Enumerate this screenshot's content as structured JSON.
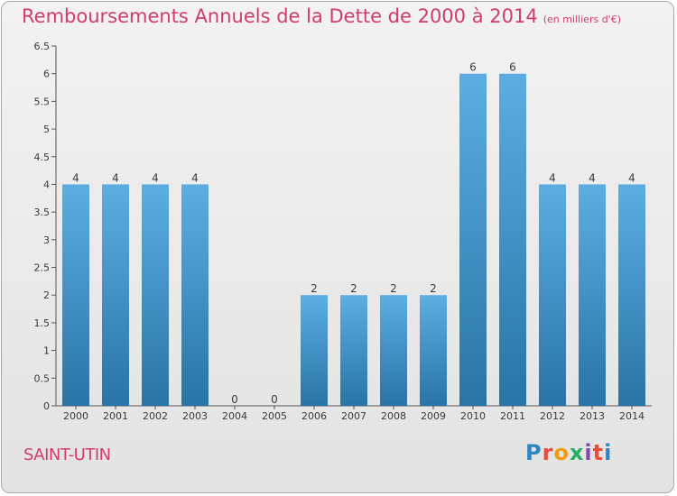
{
  "header": {
    "title": "Remboursements Annuels de la Dette de 2000 à 2014",
    "unit": "(en milliers d'€)"
  },
  "footer": {
    "place": "SAINT-UTIN",
    "logo_text": "Proxiti",
    "logo_colors": [
      "#2e86c1",
      "#e74c3c",
      "#f39c12",
      "#27ae60",
      "#8e44ad",
      "#e74c3c",
      "#2e86c1"
    ]
  },
  "colors": {
    "accent": "#d13b70",
    "bar_top": "#5dade2",
    "bar_bottom": "#2874a6"
  },
  "chart_data": {
    "type": "bar",
    "title": "Remboursements Annuels de la Dette de 2000 à 2014",
    "ylabel": "",
    "xlabel": "",
    "categories": [
      "2000",
      "2001",
      "2002",
      "2003",
      "2004",
      "2005",
      "2006",
      "2007",
      "2008",
      "2009",
      "2010",
      "2011",
      "2012",
      "2013",
      "2014"
    ],
    "values": [
      4,
      4,
      4,
      4,
      0,
      0,
      2,
      2,
      2,
      2,
      6,
      6,
      4,
      4,
      4
    ],
    "ylim": [
      0,
      6.5
    ],
    "yticks": [
      "0",
      "0.5",
      "1",
      "1.5",
      "2",
      "2.5",
      "3",
      "3.5",
      "4",
      "4.5",
      "5",
      "5.5",
      "6",
      "6.5"
    ],
    "grid": false,
    "legend": "none"
  }
}
